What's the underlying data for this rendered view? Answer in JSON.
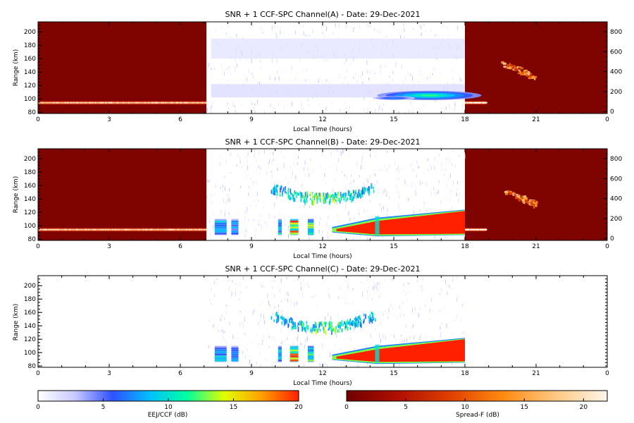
{
  "chart_data": [
    {
      "type": "heatmap",
      "title": "SNR + 1 CCF-SPC Channel(A) - Date: 29-Dec-2021",
      "xlabel": "Local Time (hours)",
      "ylabel": "Range (km)",
      "xlim": [
        0,
        24
      ],
      "ylim": [
        78,
        215
      ],
      "x_ticks": [
        "0",
        "3",
        "6",
        "9",
        "12",
        "15",
        "18",
        "21",
        "0"
      ],
      "y_ticks": [
        "80",
        "100",
        "120",
        "140",
        "160",
        "180",
        "200"
      ],
      "y2_ticks": [
        "0",
        "200",
        "400",
        "600",
        "800"
      ],
      "night": {
        "windows": [
          [
            0,
            7.1
          ],
          [
            18,
            24
          ]
        ],
        "strong_layer": [
          {
            "x0": 0,
            "x1": 7.1,
            "y": 94
          },
          {
            "x0": 18,
            "x1": 18.9,
            "y": 94
          }
        ],
        "echo_patch": {
          "x0": 19.6,
          "x1": 20.9,
          "y0": 128,
          "y1": 158
        }
      },
      "day": {
        "window": [
          7.1,
          18
        ],
        "bands": [
          {
            "x0": 7.3,
            "x1": 18,
            "y0": 160,
            "y1": 190,
            "level": 1.5
          },
          {
            "x0": 7.3,
            "x1": 18,
            "y0": 102,
            "y1": 122,
            "level": 2
          }
        ],
        "blobs": [
          {
            "x": 16.5,
            "y": 105,
            "rx": 2.2,
            "ry": 7,
            "level": 12
          },
          {
            "x": 15.0,
            "y": 101,
            "rx": 0.9,
            "ry": 3,
            "level": 8
          }
        ],
        "stripes": [],
        "bowl": null
      }
    },
    {
      "type": "heatmap",
      "title": "SNR + 1 CCF-SPC Channel(B) - Date: 29-Dec-2021",
      "xlabel": "Local Time (hours)",
      "ylabel": "Range (km)",
      "xlim": [
        0,
        24
      ],
      "ylim": [
        78,
        215
      ],
      "x_ticks": [
        "0",
        "3",
        "6",
        "9",
        "12",
        "15",
        "18",
        "21",
        "0"
      ],
      "y_ticks": [
        "80",
        "100",
        "120",
        "140",
        "160",
        "180",
        "200"
      ],
      "y2_ticks": [
        "0",
        "200",
        "400",
        "600",
        "800"
      ],
      "night": {
        "windows": [
          [
            0,
            7.1
          ],
          [
            18,
            24
          ]
        ],
        "strong_layer": [
          {
            "x0": 0,
            "x1": 7.1,
            "y": 94
          },
          {
            "x0": 18,
            "x1": 18.9,
            "y": 94
          }
        ],
        "echo_patch": {
          "x0": 19.6,
          "x1": 20.9,
          "y0": 128,
          "y1": 158
        }
      },
      "day": {
        "window": [
          7.1,
          18
        ],
        "bands": [],
        "blobs": [],
        "stripes": [
          {
            "x": 7.7,
            "w": 0.5,
            "level": 9
          },
          {
            "x": 8.3,
            "w": 0.3,
            "level": 8
          },
          {
            "x": 10.2,
            "w": 0.15,
            "level": 10
          },
          {
            "x": 10.8,
            "w": 0.35,
            "level": 18
          },
          {
            "x": 11.5,
            "w": 0.25,
            "level": 13
          }
        ],
        "bowl": {
          "x0": 9.8,
          "x1": 14.2,
          "y_edge": 160,
          "y_mid": 143,
          "level": 15
        },
        "sporadic": {
          "x_start": 12.4,
          "x_jump": 14.3,
          "y0": 86,
          "y_top_start": 110,
          "y_top_end": 123
        }
      }
    },
    {
      "type": "heatmap",
      "title": "SNR + 1 CCF-SPC Channel(C) - Date: 29-Dec-2021",
      "xlabel": "Local Time (hours)",
      "ylabel": "Range (km)",
      "xlim": [
        0,
        24
      ],
      "ylim": [
        78,
        215
      ],
      "x_ticks": [
        "0",
        "3",
        "6",
        "9",
        "12",
        "15",
        "18",
        "21",
        "0"
      ],
      "y_ticks": [
        "80",
        "100",
        "120",
        "140",
        "160",
        "180",
        "200"
      ],
      "y2_ticks": [],
      "night": null,
      "day": {
        "window": [
          7.1,
          18
        ],
        "bands": [],
        "blobs": [],
        "stripes": [
          {
            "x": 7.7,
            "w": 0.5,
            "level": 9
          },
          {
            "x": 8.3,
            "w": 0.3,
            "level": 8
          },
          {
            "x": 10.2,
            "w": 0.15,
            "level": 10
          },
          {
            "x": 10.8,
            "w": 0.35,
            "level": 18
          },
          {
            "x": 11.5,
            "w": 0.25,
            "level": 13
          }
        ],
        "bowl": {
          "x0": 9.8,
          "x1": 14.2,
          "y_edge": 158,
          "y_mid": 140,
          "level": 14
        },
        "sporadic": {
          "x_start": 12.4,
          "x_jump": 14.3,
          "y0": 85,
          "y_top_start": 108,
          "y_top_end": 121
        }
      }
    }
  ],
  "colorbars": [
    {
      "name": "EEJ/CCF (dB)",
      "label": "EEJ/CCF (dB)",
      "range": [
        0,
        20
      ],
      "ticks": [
        "0",
        "5",
        "10",
        "15",
        "20"
      ],
      "colors": [
        "#ffffff",
        "#c8c8ff",
        "#3050ff",
        "#00c0ff",
        "#00ffa0",
        "#e0ff00",
        "#ffa000",
        "#ff2000"
      ]
    },
    {
      "name": "Spread-F (dB)",
      "label": "Spread-F (dB)",
      "range": [
        0,
        22
      ],
      "ticks": [
        "0",
        "5",
        "10",
        "15",
        "20"
      ],
      "colors": [
        "#700000",
        "#b01000",
        "#e04000",
        "#ff8a10",
        "#ffc880",
        "#fff6ec"
      ]
    }
  ]
}
